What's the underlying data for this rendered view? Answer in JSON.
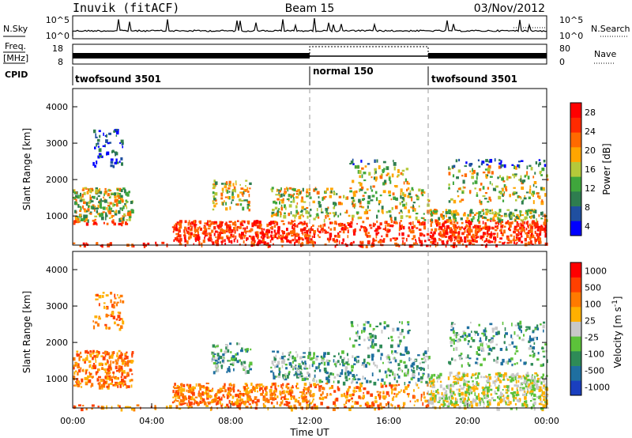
{
  "header": {
    "station": "Inuvik (fitACF)",
    "beam": "Beam 15",
    "date": "03/Nov/2012"
  },
  "panels": {
    "nsky_label": "N.Sky",
    "nsky_ticks": [
      "10^5",
      "10^0"
    ],
    "nsearch_ticks": [
      "10^5",
      "10^0"
    ],
    "nsearch_label": "N.Search",
    "freq_label_top": "Freq.",
    "freq_label_bottom": "[MHz]",
    "freq_ticks": [
      "18",
      "8"
    ],
    "nave_ticks": [
      "80",
      "0"
    ],
    "nave_label": "Nave",
    "cpid_label": "CPID",
    "cpid_segments": [
      {
        "label": "twofsound 3501",
        "start_h": 0,
        "end_h": 12
      },
      {
        "label": "normal 150",
        "start_h": 12,
        "end_h": 18
      },
      {
        "label": "twofsound 3501",
        "start_h": 18,
        "end_h": 24
      }
    ]
  },
  "chart_data": [
    {
      "type": "heatmap",
      "parameter": "power",
      "ylabel": "Slant Range [km]",
      "yticks": [
        "4000",
        "3000",
        "2000",
        "1000"
      ],
      "ylim": [
        200,
        4500
      ],
      "xlim": [
        0,
        24
      ],
      "colorbar": {
        "label": "Power [dB]",
        "ticks": [
          "28",
          "24",
          "20",
          "16",
          "12",
          "8",
          "4"
        ],
        "range": [
          0,
          30
        ],
        "colors": [
          "#0000ff",
          "#1f4fa0",
          "#2e7d4f",
          "#3fa63c",
          "#b5c93a",
          "#ffa500",
          "#ff6a00",
          "#ff2a00",
          "#ff0000"
        ]
      }
    },
    {
      "type": "heatmap",
      "parameter": "velocity",
      "ylabel": "Slant Range [km]",
      "yticks": [
        "4000",
        "3000",
        "2000",
        "1000"
      ],
      "ylim": [
        200,
        4500
      ],
      "xlim": [
        0,
        24
      ],
      "xlabel": "Time UT",
      "xticks": [
        "00:00",
        "04:00",
        "08:00",
        "12:00",
        "16:00",
        "20:00",
        "00:00"
      ],
      "colorbar": {
        "label": "Velocity [m s",
        "label_sup": "-1",
        "label_end": "]",
        "ticks": [
          "1000",
          "500",
          "100",
          "25",
          "-25",
          "-100",
          "-500",
          "-1000"
        ],
        "colors": [
          "#1a3fbf",
          "#1f6fa0",
          "#2e8b57",
          "#5cc23a",
          "#c8c8c8",
          "#ffb000",
          "#ff7a00",
          "#ff4000",
          "#ff0000"
        ]
      }
    }
  ]
}
